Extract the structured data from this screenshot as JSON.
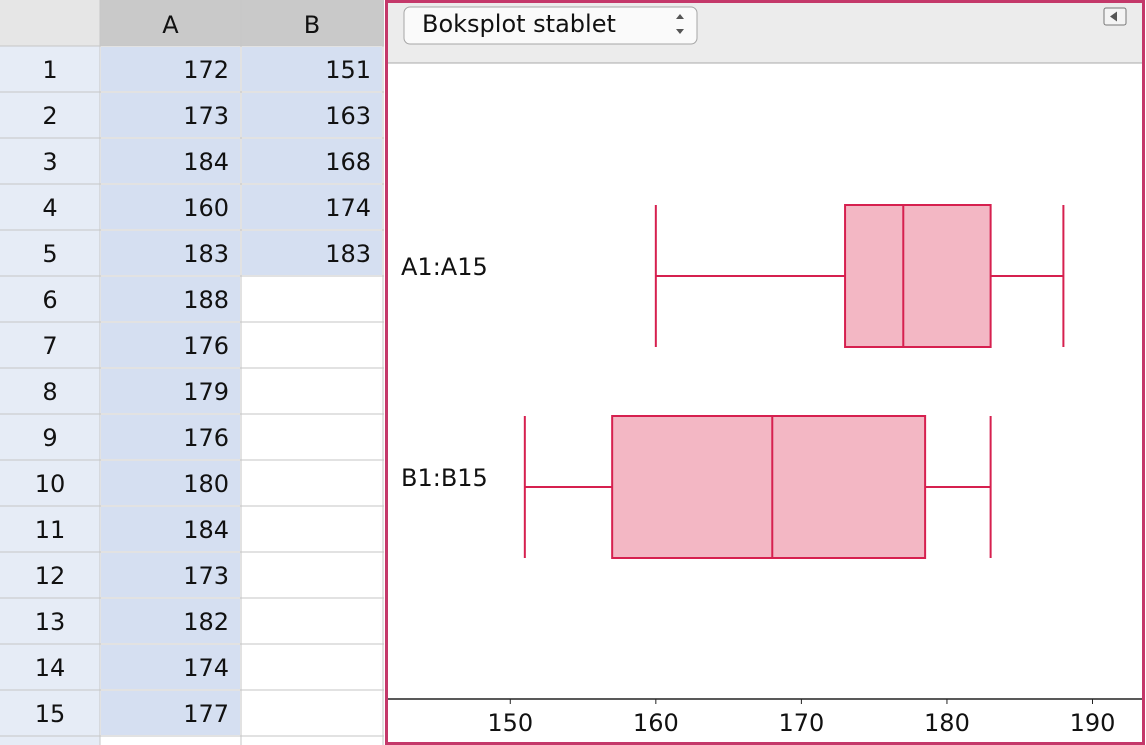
{
  "spreadsheet": {
    "columns": [
      "A",
      "B"
    ],
    "row_numbers": [
      1,
      2,
      3,
      4,
      5,
      6,
      7,
      8,
      9,
      10,
      11,
      12,
      13,
      14,
      15
    ],
    "cells": {
      "A": [
        172,
        173,
        184,
        160,
        183,
        188,
        176,
        179,
        176,
        180,
        184,
        173,
        182,
        174,
        177
      ],
      "B": [
        151,
        163,
        168,
        174,
        183
      ]
    }
  },
  "view_selector": "Boksplot stablet",
  "chart_data": {
    "type": "boxplot",
    "color": "#d6204f",
    "fill": "#f3b7c4",
    "series": [
      {
        "name": "A1:A15",
        "min": 160,
        "q1": 173,
        "median": 177,
        "q3": 183,
        "max": 188
      },
      {
        "name": "B1:B15",
        "min": 151,
        "q1": 157,
        "median": 168,
        "q3": 178.5,
        "max": 183
      }
    ],
    "xlim": [
      141.6,
      193.4
    ],
    "xticks": [
      150,
      160,
      170,
      180,
      190
    ]
  }
}
